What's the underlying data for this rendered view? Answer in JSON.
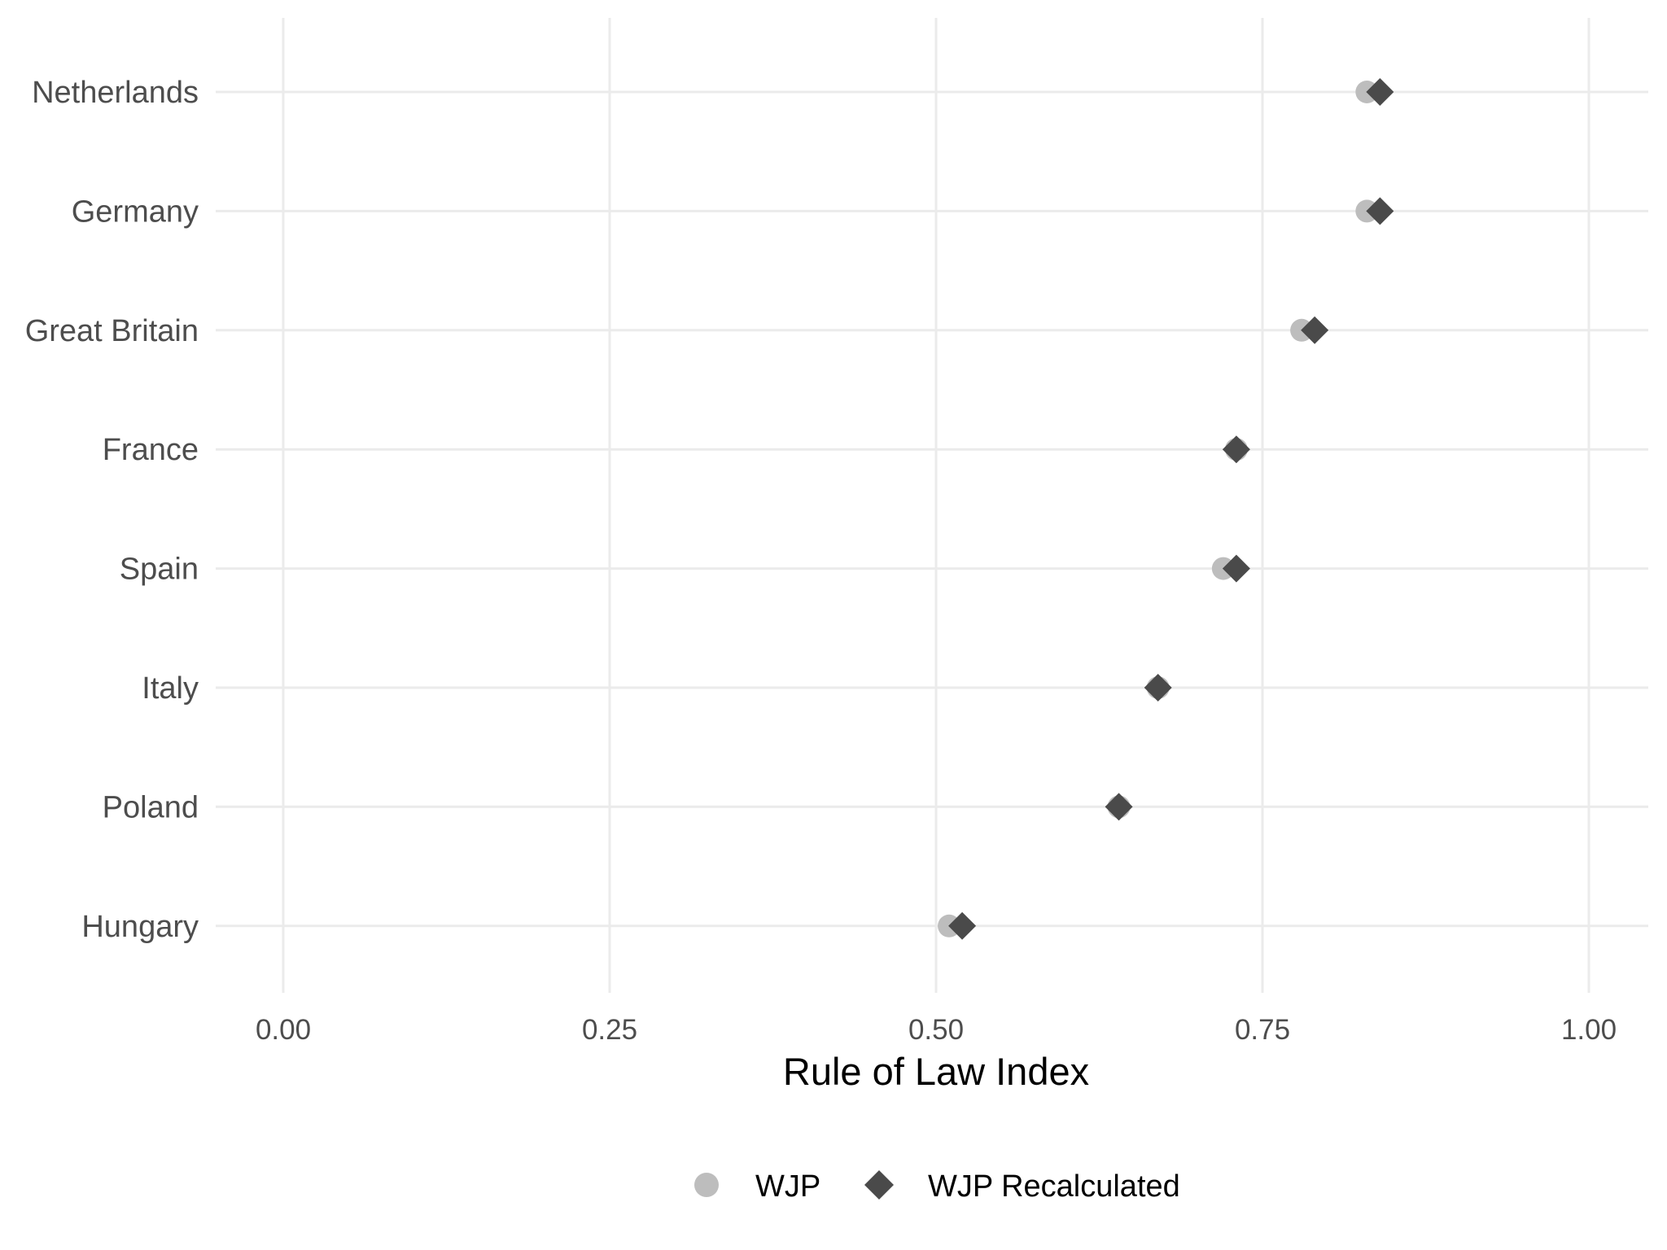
{
  "chart_data": {
    "type": "scatter",
    "title": "",
    "xlabel": "Rule of Law Index",
    "ylabel": "",
    "xlim": [
      -0.05,
      1.05
    ],
    "x_ticks": [
      0.0,
      0.25,
      0.5,
      0.75,
      1.0
    ],
    "x_tick_labels": [
      "0.00",
      "0.25",
      "0.50",
      "0.75",
      "1.00"
    ],
    "categories": [
      "Netherlands",
      "Germany",
      "Great Britain",
      "France",
      "Spain",
      "Italy",
      "Poland",
      "Hungary"
    ],
    "series": [
      {
        "name": "WJP",
        "marker": "circle",
        "color": "#bdbdbd",
        "values": [
          0.83,
          0.83,
          0.78,
          0.73,
          0.72,
          0.67,
          0.64,
          0.51
        ]
      },
      {
        "name": "WJP Recalculated",
        "marker": "diamond",
        "color": "#4a4a4a",
        "values": [
          0.84,
          0.84,
          0.79,
          0.73,
          0.73,
          0.67,
          0.64,
          0.52
        ]
      }
    ],
    "grid": true,
    "legend_position": "bottom"
  }
}
